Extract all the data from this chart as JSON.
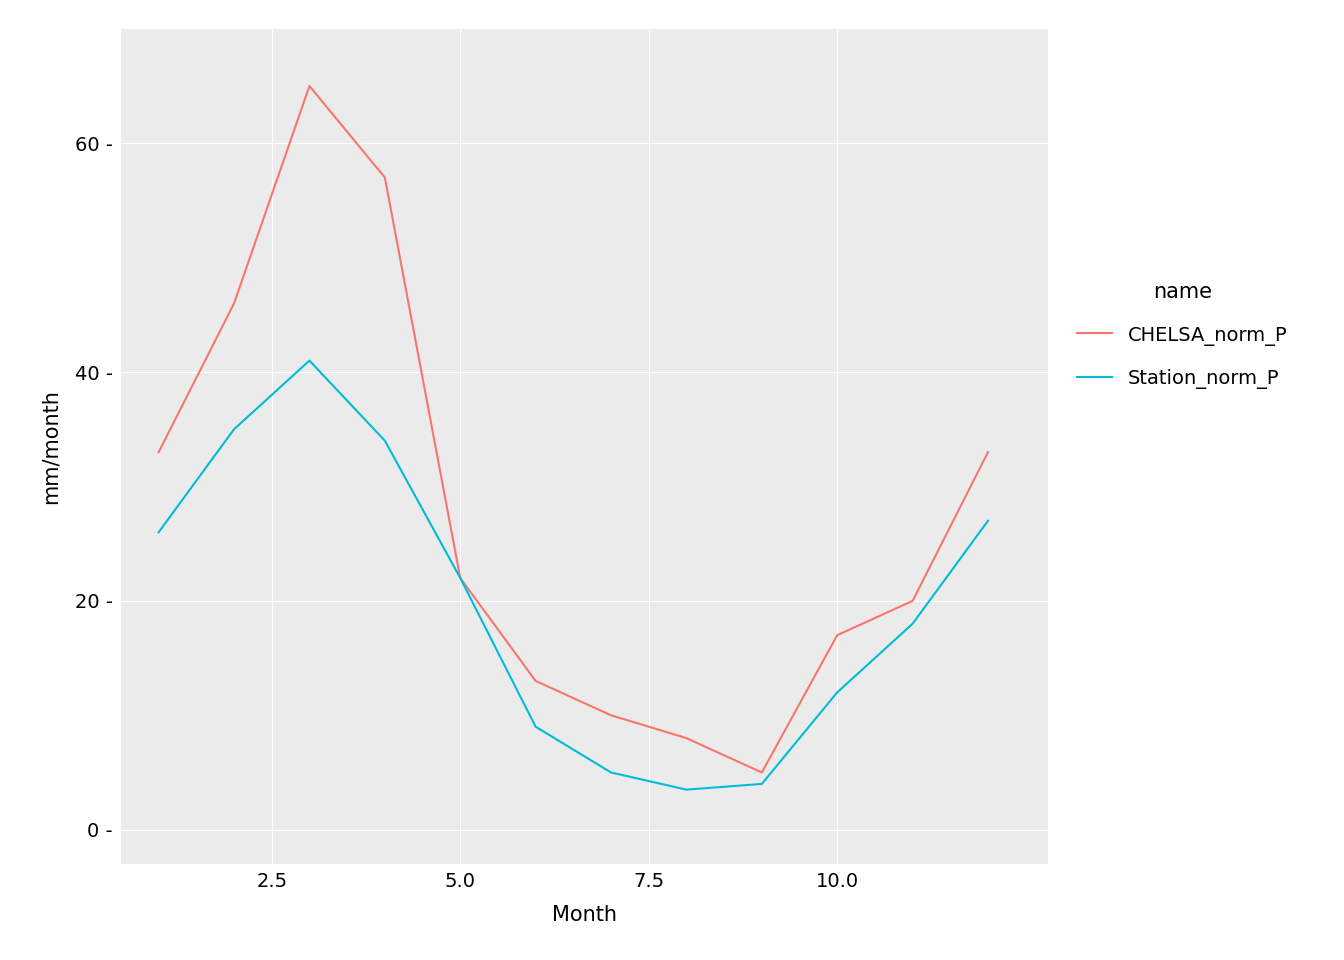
{
  "months": [
    1,
    2,
    3,
    4,
    5,
    6,
    7,
    8,
    9,
    10,
    11,
    12
  ],
  "chelsa_norm_p": [
    33,
    46,
    65,
    57,
    22,
    13,
    10,
    8,
    5,
    17,
    20,
    33
  ],
  "station_norm_p": [
    26,
    35,
    41,
    34,
    22,
    9,
    5,
    3.5,
    4,
    12,
    18,
    27
  ],
  "chelsa_color": "#F8766D",
  "station_color": "#00BCD8",
  "background_color": "#EBEBEB",
  "grid_color": "#FFFFFF",
  "xlabel": "Month",
  "ylabel": "mm/month",
  "legend_title": "name",
  "legend_label_chelsa": "CHELSA_norm_P",
  "legend_label_station": "Station_norm_P",
  "xlim": [
    0.5,
    12.8
  ],
  "ylim": [
    -3,
    70
  ],
  "xticks": [
    2.5,
    5.0,
    7.5,
    10.0
  ],
  "xtick_labels": [
    "2.5",
    "5.0",
    "7.5",
    "10.0"
  ],
  "yticks": [
    0,
    20,
    40,
    60
  ],
  "ytick_labels": [
    "0 -",
    "20 -",
    "40 -",
    "60 -"
  ],
  "line_width": 1.5,
  "font_size": 14,
  "legend_key_bg": "#E8E8E8"
}
